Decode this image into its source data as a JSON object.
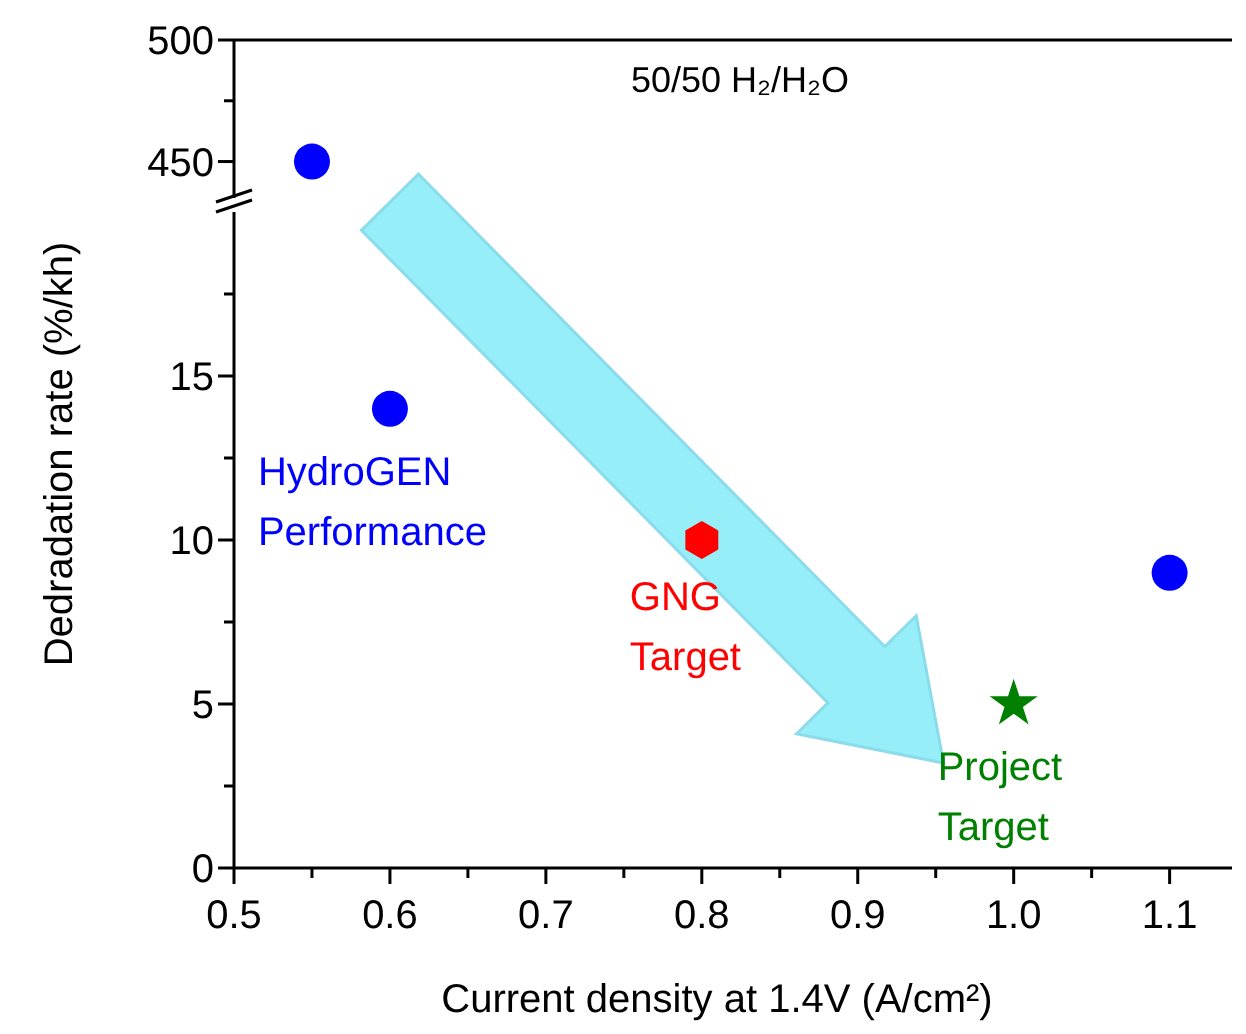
{
  "chart_data": [
    {
      "type": "scatter",
      "xlim": [
        0.5,
        1.14
      ],
      "ylim": [
        435,
        500
      ],
      "yticks": [
        450,
        {
          "value": 475,
          "label": null
        },
        500
      ],
      "tick_labels": "y",
      "annotations": [
        "50/50 H₂/H₂O"
      ],
      "series": [
        {
          "color": "#0000ff",
          "marker": "circle",
          "x": [
            0.55
          ],
          "values": [
            450
          ]
        }
      ]
    },
    {
      "type": "scatter",
      "xlabel": "Current density at 1.4V (A/cm²)",
      "ylabel": "Dedradation rate (%/kh)",
      "xlim": [
        0.5,
        1.14
      ],
      "ylim": [
        0,
        20
      ],
      "xticks": [
        0.5,
        {
          "value": 0.55,
          "label": null
        },
        0.6,
        {
          "value": 0.65,
          "label": null
        },
        0.7,
        {
          "value": 0.75,
          "label": null
        },
        0.8,
        {
          "value": 0.85,
          "label": null
        },
        0.9,
        {
          "value": 0.95,
          "label": null
        },
        {
          "value": 1,
          "label": "1.0"
        },
        {
          "value": 1.05,
          "label": null
        },
        1.1
      ],
      "yticks": [
        0,
        {
          "value": 2.5,
          "label": null
        },
        5,
        {
          "value": 7.5,
          "label": null
        },
        10,
        {
          "value": 12.5,
          "label": null
        },
        15,
        {
          "value": 17.5,
          "label": null
        }
      ],
      "series": [
        {
          "name": "HydroGEN Performance",
          "color": "#0000ff",
          "marker": "circle",
          "x": [
            0.6,
            1.1
          ],
          "values": [
            14,
            9
          ]
        },
        {
          "name": "GNG Target",
          "color": "#ff0000",
          "x": [
            0.8
          ],
          "values": [
            10
          ]
        },
        {
          "name": "Project Target",
          "color": "#008000",
          "marker": "star",
          "x": [
            1.0
          ],
          "values": [
            5
          ]
        }
      ]
    }
  ]
}
